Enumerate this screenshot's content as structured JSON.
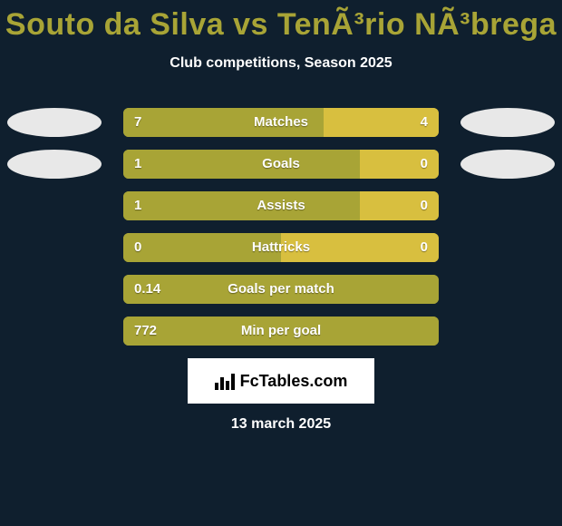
{
  "background_color": "#0f1f2e",
  "text_color": "#ffffff",
  "title": "Souto da Silva vs TenÃ³rio NÃ³brega",
  "title_color": "#a8a436",
  "title_fontsize": 34,
  "subtitle": "Club competitions, Season 2025",
  "subtitle_fontsize": 16,
  "avatar_placeholder_color": "#e8e8e8",
  "bar_color_left": "#a8a436",
  "bar_color_right": "#d8bf3f",
  "bar_bg_empty": "#a8a436",
  "rows": [
    {
      "label": "Matches",
      "left": "7",
      "right": "4",
      "left_pct": 63.6,
      "show_avatars": true
    },
    {
      "label": "Goals",
      "left": "1",
      "right": "0",
      "left_pct": 75,
      "show_avatars": true
    },
    {
      "label": "Assists",
      "left": "1",
      "right": "0",
      "left_pct": 75,
      "show_avatars": false
    },
    {
      "label": "Hattricks",
      "left": "0",
      "right": "0",
      "left_pct": 50,
      "show_avatars": false
    },
    {
      "label": "Goals per match",
      "left": "0.14",
      "right": "",
      "left_pct": 100,
      "show_avatars": false
    },
    {
      "label": "Min per goal",
      "left": "772",
      "right": "",
      "left_pct": 100,
      "show_avatars": false
    }
  ],
  "logo_text": "FcTables.com",
  "footer_date": "13 march 2025"
}
